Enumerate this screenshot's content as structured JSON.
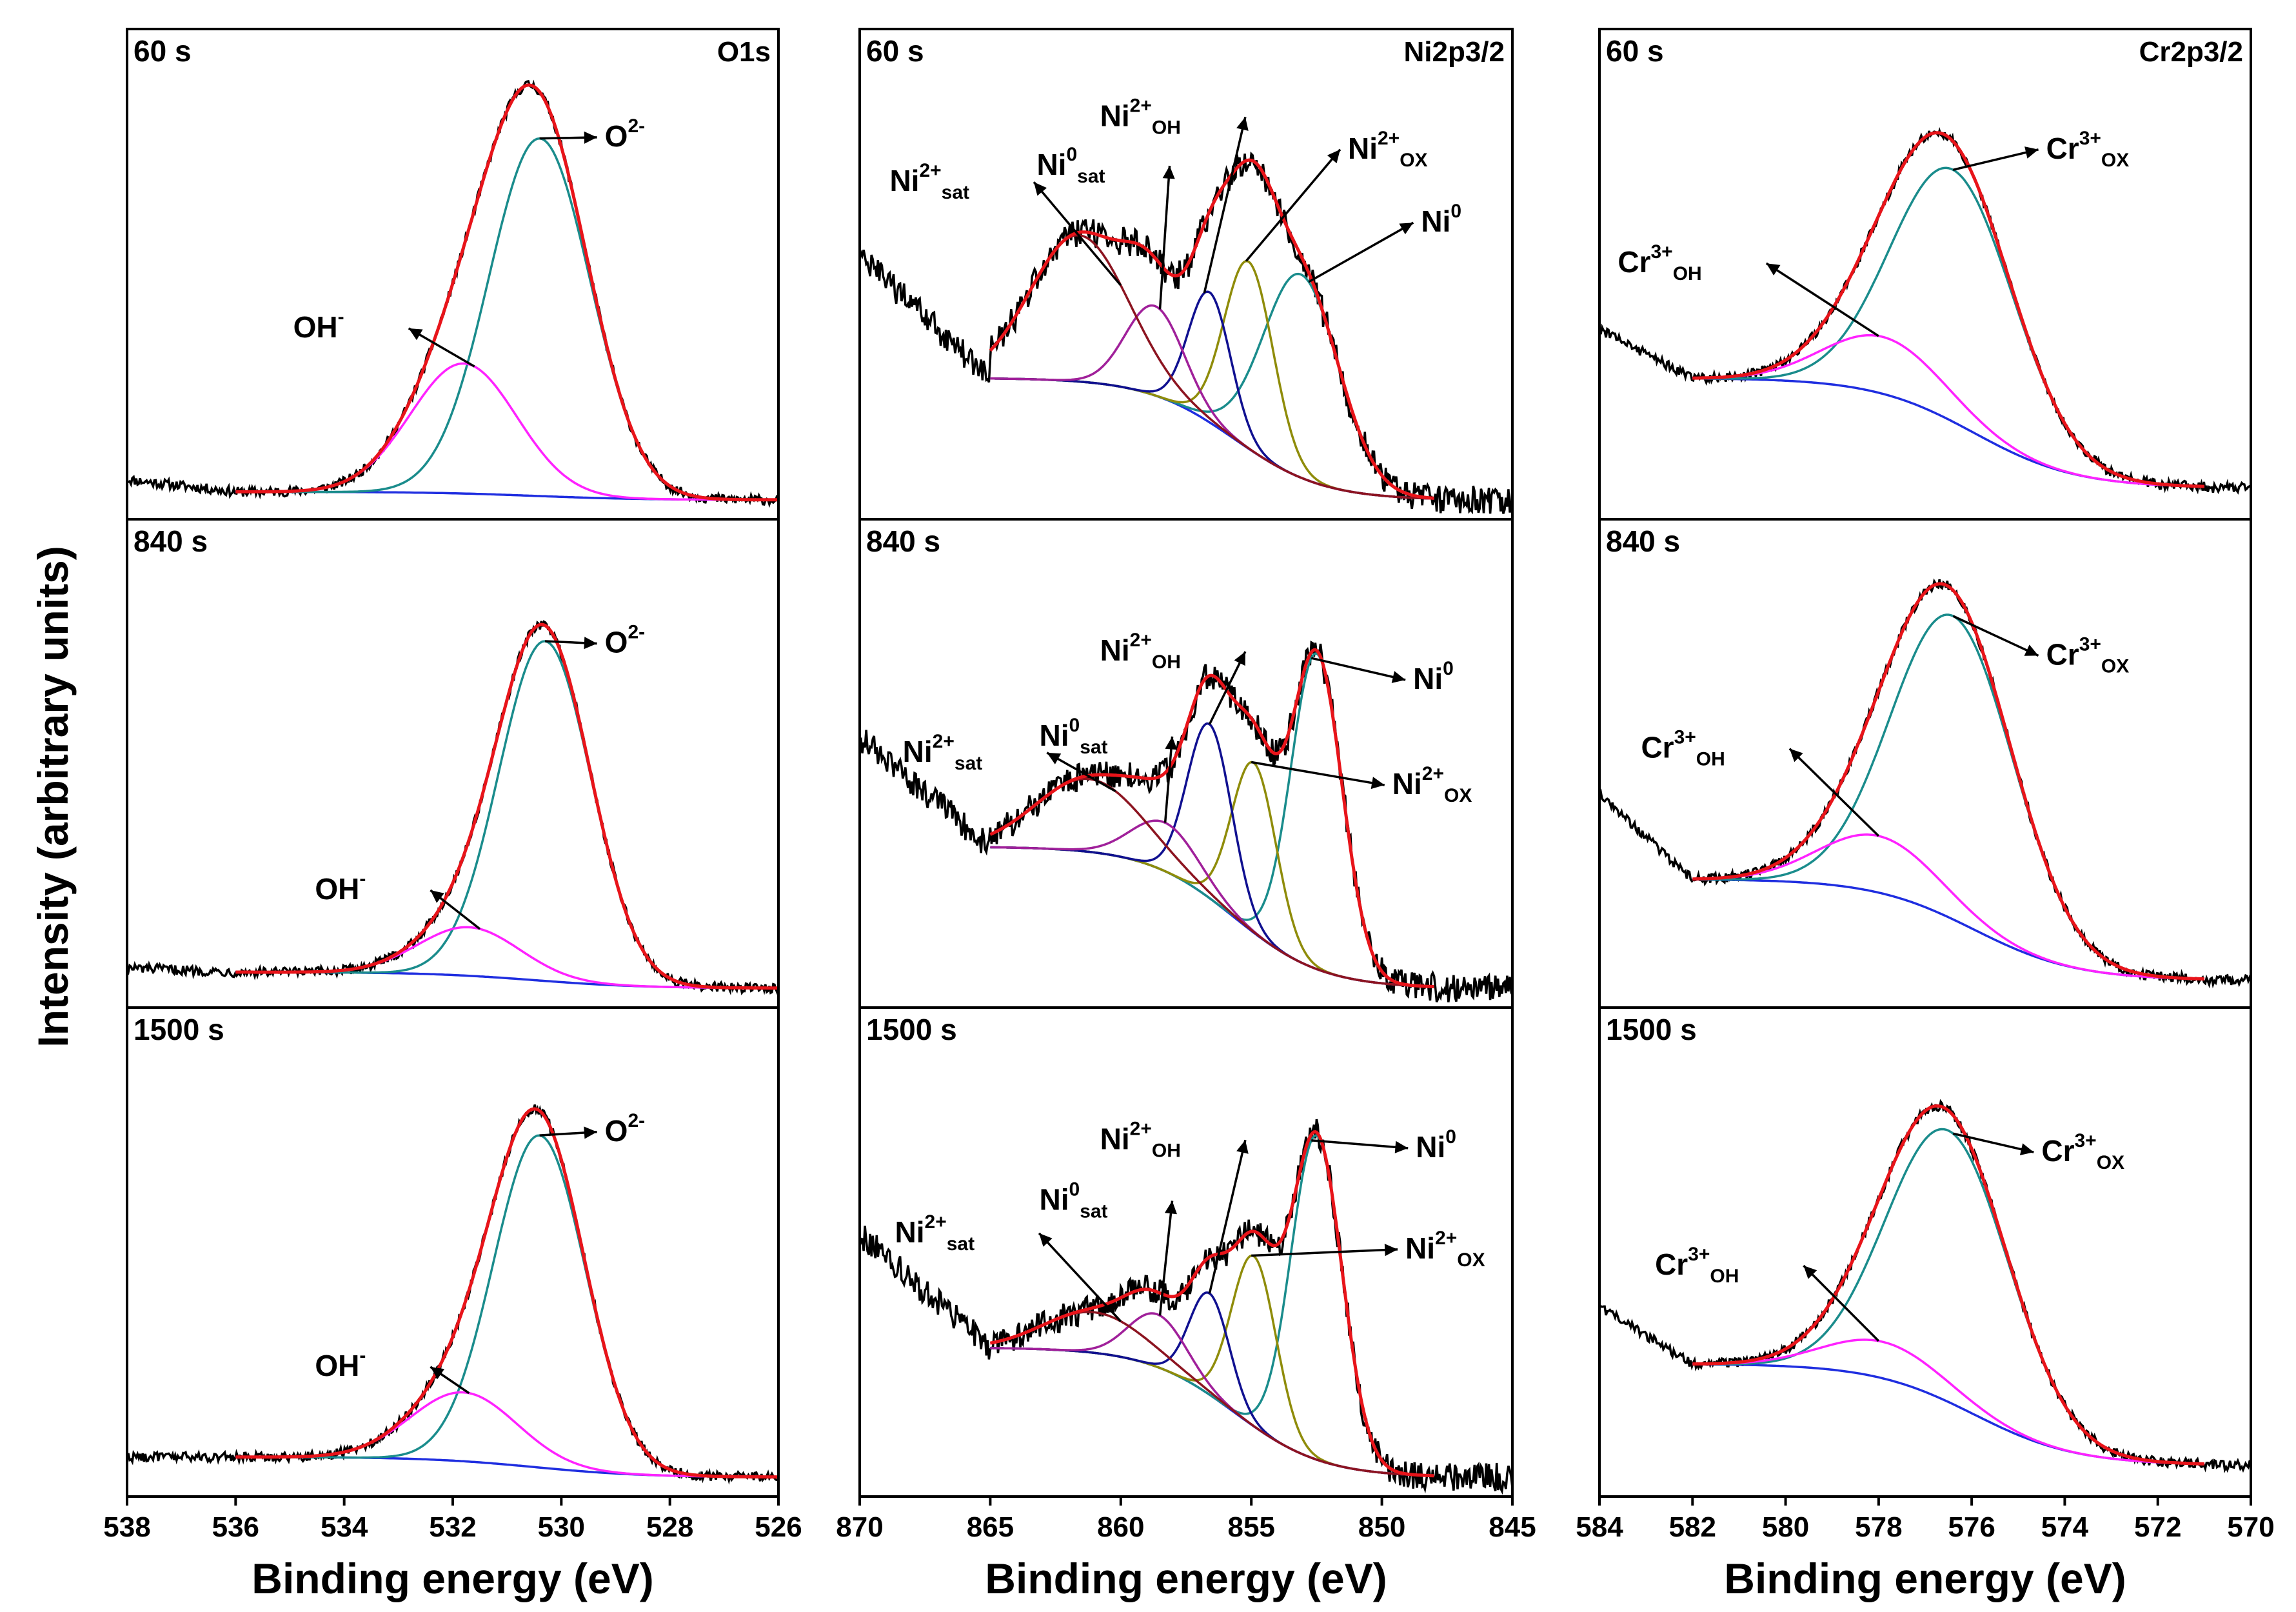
{
  "figure": {
    "ylabel": "Intensity (arbitrary units)",
    "xlabel": "Binding energy (eV)",
    "colors": {
      "raw": "#000000",
      "envelope": "#e8141a",
      "background": "#1f2ee0",
      "O2-": "#1a8c8c",
      "OH-": "#ff22ff",
      "Ni0": "#1a8c8c",
      "Ni2+ox": "#8f8c0a",
      "Ni2+oh": "#101090",
      "Ni0sat": "#a0209a",
      "Ni2+sat": "#8c1420",
      "Cr3+ox": "#1a8c8c",
      "Cr3+oh": "#ff22ff"
    }
  },
  "chart_data": [
    {
      "type": "line",
      "element": "O1s",
      "time": "60 s",
      "xlim": [
        538,
        526
      ],
      "xticks": [
        "538",
        "536",
        "534",
        "532",
        "530",
        "528",
        "526"
      ],
      "baseline": {
        "from": 536,
        "to": 526,
        "left": 0.02,
        "right": 0.0
      },
      "peaks": [
        {
          "name": "O2-",
          "center": 530.4,
          "fwhm": 2.2,
          "height": 0.88
        },
        {
          "name": "OH-",
          "center": 531.8,
          "fwhm": 2.3,
          "height": 0.32
        }
      ],
      "raw": {
        "from": 538,
        "to": 526,
        "level_left": 0.05,
        "level_right": 0.0,
        "noise": 0.012
      },
      "labels": [
        {
          "kind": "O2-",
          "base": "O",
          "sup": "2-",
          "sub": "",
          "anchor_x": 530.4,
          "text_x": 529.2,
          "text_y": 0.87
        },
        {
          "kind": "OH-",
          "base": "OH",
          "sup": "-",
          "sub": "",
          "anchor_x": 531.6,
          "text_x": 534.0,
          "text_y": 0.4
        }
      ]
    },
    {
      "type": "line",
      "element": "O1s",
      "time": "840 s",
      "xlim": [
        538,
        526
      ],
      "xticks": [
        "538",
        "536",
        "534",
        "532",
        "530",
        "528",
        "526"
      ],
      "baseline": {
        "from": 536,
        "to": 526,
        "left": 0.04,
        "right": 0.0
      },
      "peaks": [
        {
          "name": "O2-",
          "center": 530.3,
          "fwhm": 2.0,
          "height": 0.84
        },
        {
          "name": "OH-",
          "center": 531.7,
          "fwhm": 2.2,
          "height": 0.12
        }
      ],
      "raw": {
        "from": 538,
        "to": 526,
        "level_left": 0.05,
        "level_right": 0.0,
        "noise": 0.012
      },
      "labels": [
        {
          "kind": "O2-",
          "base": "O",
          "sup": "2-",
          "sub": "",
          "anchor_x": 530.3,
          "text_x": 529.2,
          "text_y": 0.83
        },
        {
          "kind": "OH-",
          "base": "OH",
          "sup": "-",
          "sub": "",
          "anchor_x": 531.5,
          "text_x": 533.6,
          "text_y": 0.22
        }
      ]
    },
    {
      "type": "line",
      "element": "O1s",
      "time": "1500 s",
      "xlim": [
        538,
        526
      ],
      "xticks": [
        "538",
        "536",
        "534",
        "532",
        "530",
        "528",
        "526"
      ],
      "baseline": {
        "from": 536,
        "to": 526,
        "left": 0.05,
        "right": 0.0
      },
      "peaks": [
        {
          "name": "O2-",
          "center": 530.4,
          "fwhm": 2.0,
          "height": 0.82
        },
        {
          "name": "OH-",
          "center": 531.8,
          "fwhm": 2.3,
          "height": 0.17
        }
      ],
      "raw": {
        "from": 538,
        "to": 526,
        "level_left": 0.05,
        "level_right": 0.0,
        "noise": 0.012
      },
      "labels": [
        {
          "kind": "O2-",
          "base": "O",
          "sup": "2-",
          "sub": "",
          "anchor_x": 530.4,
          "text_x": 529.2,
          "text_y": 0.83
        },
        {
          "kind": "OH-",
          "base": "OH",
          "sup": "-",
          "sub": "",
          "anchor_x": 531.7,
          "text_x": 533.6,
          "text_y": 0.25
        }
      ]
    },
    {
      "type": "line",
      "element": "Ni2p3/2",
      "time": "60 s",
      "xlim": [
        870,
        845
      ],
      "xticks": [
        "870",
        "865",
        "860",
        "855",
        "850",
        "845"
      ],
      "baseline": {
        "from": 865,
        "to": 848,
        "left": 0.3,
        "right": 0.0
      },
      "peaks": [
        {
          "name": "Ni0",
          "center": 853.1,
          "fwhm": 3.4,
          "height": 0.5
        },
        {
          "name": "Ni2+ox",
          "center": 855.1,
          "fwhm": 2.2,
          "height": 0.46
        },
        {
          "name": "Ni2+oh",
          "center": 856.6,
          "fwhm": 1.9,
          "height": 0.32
        },
        {
          "name": "Ni0sat",
          "center": 858.7,
          "fwhm": 2.6,
          "height": 0.22
        },
        {
          "name": "Ni2+sat",
          "center": 861.6,
          "fwhm": 4.4,
          "height": 0.36
        }
      ],
      "raw": {
        "from": 870,
        "to": 845,
        "level_left": 0.6,
        "level_right": 0.0,
        "noise": 0.035
      },
      "labels": [
        {
          "kind": "Ni2+sat",
          "base": "Ni",
          "sup": "2+",
          "sub": "sat",
          "anchor_x": 860.0,
          "text_x": 865.8,
          "text_y": 0.76
        },
        {
          "kind": "Ni0sat",
          "base": "Ni",
          "sup": "0",
          "sub": "sat",
          "anchor_x": 858.5,
          "text_x": 860.6,
          "text_y": 0.8
        },
        {
          "kind": "Ni2+oh",
          "base": "Ni",
          "sup": "2+",
          "sub": "OH",
          "anchor_x": 856.8,
          "text_x": 857.7,
          "text_y": 0.92
        },
        {
          "kind": "Ni2+ox",
          "base": "Ni",
          "sup": "2+",
          "sub": "OX",
          "anchor_x": 855.2,
          "text_x": 851.3,
          "text_y": 0.84
        },
        {
          "kind": "Ni0",
          "base": "Ni",
          "sup": "0",
          "sub": "",
          "anchor_x": 852.8,
          "text_x": 848.5,
          "text_y": 0.66
        }
      ]
    },
    {
      "type": "line",
      "element": "Ni2p3/2",
      "time": "840 s",
      "xlim": [
        870,
        845
      ],
      "xticks": [
        "870",
        "865",
        "860",
        "855",
        "850",
        "845"
      ],
      "baseline": {
        "from": 865,
        "to": 848,
        "left": 0.35,
        "right": 0.0
      },
      "peaks": [
        {
          "name": "Ni0",
          "center": 852.5,
          "fwhm": 2.3,
          "height": 0.78
        },
        {
          "name": "Ni2+ox",
          "center": 854.9,
          "fwhm": 2.0,
          "height": 0.42
        },
        {
          "name": "Ni2+oh",
          "center": 856.6,
          "fwhm": 2.0,
          "height": 0.43
        },
        {
          "name": "Ni0sat",
          "center": 858.3,
          "fwhm": 3.0,
          "height": 0.12
        },
        {
          "name": "Ni2+sat",
          "center": 861.2,
          "fwhm": 4.8,
          "height": 0.18
        }
      ],
      "raw": {
        "from": 870,
        "to": 845,
        "level_left": 0.62,
        "level_right": 0.0,
        "noise": 0.035
      },
      "labels": [
        {
          "kind": "Ni2+sat",
          "base": "Ni",
          "sup": "2+",
          "sub": "sat",
          "anchor_x": 860.2,
          "text_x": 865.3,
          "text_y": 0.56
        },
        {
          "kind": "Ni0sat",
          "base": "Ni",
          "sup": "0",
          "sub": "sat",
          "anchor_x": 858.3,
          "text_x": 860.5,
          "text_y": 0.6
        },
        {
          "kind": "Ni2+oh",
          "base": "Ni",
          "sup": "2+",
          "sub": "OH",
          "anchor_x": 856.6,
          "text_x": 857.7,
          "text_y": 0.81
        },
        {
          "kind": "Ni2+ox",
          "base": "Ni",
          "sup": "2+",
          "sub": "OX",
          "anchor_x": 855.0,
          "text_x": 849.6,
          "text_y": 0.48
        },
        {
          "kind": "Ni0",
          "base": "Ni",
          "sup": "0",
          "sub": "",
          "anchor_x": 852.7,
          "text_x": 848.8,
          "text_y": 0.74
        }
      ]
    },
    {
      "type": "line",
      "element": "Ni2p3/2",
      "time": "1500 s",
      "xlim": [
        870,
        845
      ],
      "xticks": [
        "870",
        "865",
        "860",
        "855",
        "850",
        "845"
      ],
      "baseline": {
        "from": 865,
        "to": 848,
        "left": 0.32,
        "right": 0.0
      },
      "peaks": [
        {
          "name": "Ni0",
          "center": 852.5,
          "fwhm": 2.3,
          "height": 0.8
        },
        {
          "name": "Ni2+ox",
          "center": 854.9,
          "fwhm": 2.0,
          "height": 0.42
        },
        {
          "name": "Ni2+oh",
          "center": 856.6,
          "fwhm": 1.8,
          "height": 0.25
        },
        {
          "name": "Ni0sat",
          "center": 858.6,
          "fwhm": 2.6,
          "height": 0.13
        },
        {
          "name": "Ni2+sat",
          "center": 861.0,
          "fwhm": 4.6,
          "height": 0.1
        }
      ],
      "raw": {
        "from": 870,
        "to": 845,
        "level_left": 0.6,
        "level_right": 0.0,
        "noise": 0.035
      },
      "labels": [
        {
          "kind": "Ni2+sat",
          "base": "Ni",
          "sup": "2+",
          "sub": "sat",
          "anchor_x": 860.0,
          "text_x": 865.6,
          "text_y": 0.58
        },
        {
          "kind": "Ni0sat",
          "base": "Ni",
          "sup": "0",
          "sub": "sat",
          "anchor_x": 858.5,
          "text_x": 860.5,
          "text_y": 0.66
        },
        {
          "kind": "Ni2+oh",
          "base": "Ni",
          "sup": "2+",
          "sub": "OH",
          "anchor_x": 856.6,
          "text_x": 857.7,
          "text_y": 0.81
        },
        {
          "kind": "Ni2+ox",
          "base": "Ni",
          "sup": "2+",
          "sub": "OX",
          "anchor_x": 855.0,
          "text_x": 849.1,
          "text_y": 0.54
        },
        {
          "kind": "Ni0",
          "base": "Ni",
          "sup": "0",
          "sub": "",
          "anchor_x": 852.7,
          "text_x": 848.7,
          "text_y": 0.79
        }
      ]
    },
    {
      "type": "line",
      "element": "Cr2p3/2",
      "time": "60 s",
      "xlim": [
        584,
        570
      ],
      "xticks": [
        "584",
        "582",
        "580",
        "578",
        "576",
        "574",
        "572",
        "570"
      ],
      "baseline": {
        "from": 582,
        "to": 571,
        "left": 0.3,
        "right": 0.03
      },
      "peaks": [
        {
          "name": "Cr3+ox",
          "center": 576.4,
          "fwhm": 3.1,
          "height": 0.62
        },
        {
          "name": "Cr3+oh",
          "center": 577.9,
          "fwhm": 3.0,
          "height": 0.14
        }
      ],
      "raw": {
        "from": 584,
        "to": 570,
        "level_left": 0.42,
        "level_right": 0.02,
        "noise": 0.012
      },
      "labels": [
        {
          "kind": "Cr3+ox",
          "base": "Cr",
          "sup": "3+",
          "sub": "OX",
          "anchor_x": 576.4,
          "text_x": 574.4,
          "text_y": 0.84
        },
        {
          "kind": "Cr3+oh",
          "base": "Cr",
          "sup": "3+",
          "sub": "OH",
          "anchor_x": 578.0,
          "text_x": 581.8,
          "text_y": 0.56
        }
      ]
    },
    {
      "type": "line",
      "element": "Cr2p3/2",
      "time": "840 s",
      "xlim": [
        584,
        570
      ],
      "xticks": [
        "584",
        "582",
        "580",
        "578",
        "576",
        "574",
        "572",
        "570"
      ],
      "baseline": {
        "from": 582,
        "to": 571,
        "left": 0.27,
        "right": 0.02
      },
      "peaks": [
        {
          "name": "Cr3+ox",
          "center": 576.4,
          "fwhm": 3.1,
          "height": 0.75
        },
        {
          "name": "Cr3+oh",
          "center": 578.0,
          "fwhm": 3.0,
          "height": 0.14
        }
      ],
      "raw": {
        "from": 584,
        "to": 570,
        "level_left": 0.48,
        "level_right": 0.01,
        "noise": 0.012
      },
      "labels": [
        {
          "kind": "Cr3+ox",
          "base": "Cr",
          "sup": "3+",
          "sub": "OX",
          "anchor_x": 576.4,
          "text_x": 574.4,
          "text_y": 0.8
        },
        {
          "kind": "Cr3+oh",
          "base": "Cr",
          "sup": "3+",
          "sub": "OH",
          "anchor_x": 578.0,
          "text_x": 581.3,
          "text_y": 0.57
        }
      ]
    },
    {
      "type": "line",
      "element": "Cr2p3/2",
      "time": "1500 s",
      "xlim": [
        584,
        570
      ],
      "xticks": [
        "584",
        "582",
        "580",
        "578",
        "576",
        "574",
        "572",
        "570"
      ],
      "baseline": {
        "from": 582,
        "to": 571,
        "left": 0.28,
        "right": 0.03
      },
      "peaks": [
        {
          "name": "Cr3+ox",
          "center": 576.5,
          "fwhm": 3.1,
          "height": 0.67
        },
        {
          "name": "Cr3+oh",
          "center": 577.9,
          "fwhm": 3.0,
          "height": 0.09
        }
      ],
      "raw": {
        "from": 584,
        "to": 570,
        "level_left": 0.42,
        "level_right": 0.02,
        "noise": 0.012
      },
      "labels": [
        {
          "kind": "Cr3+ox",
          "base": "Cr",
          "sup": "3+",
          "sub": "OX",
          "anchor_x": 576.4,
          "text_x": 574.5,
          "text_y": 0.78
        },
        {
          "kind": "Cr3+oh",
          "base": "Cr",
          "sup": "3+",
          "sub": "OH",
          "anchor_x": 578.0,
          "text_x": 581.0,
          "text_y": 0.5
        }
      ]
    }
  ]
}
